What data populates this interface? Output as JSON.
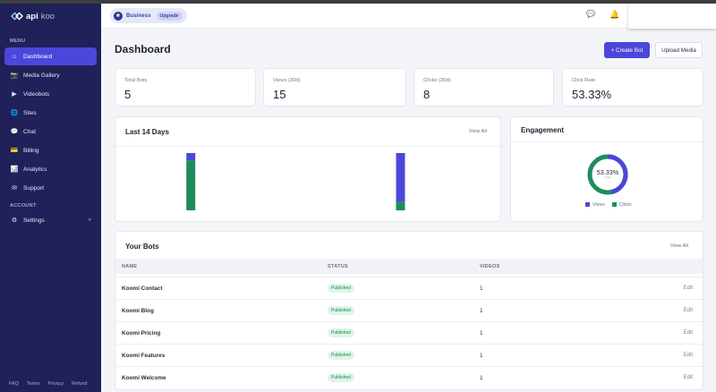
{
  "brand": {
    "name_a": "api",
    "name_b": "koo"
  },
  "sidebar": {
    "menu_label": "MENU",
    "account_label": "ACCOUNT",
    "items": [
      {
        "label": "Dashboard",
        "icon": "home-icon",
        "glyph": "⌂"
      },
      {
        "label": "Media Gallery",
        "icon": "camera-icon",
        "glyph": "📷"
      },
      {
        "label": "Videobots",
        "icon": "play-icon",
        "glyph": "▶"
      },
      {
        "label": "Sites",
        "icon": "globe-icon",
        "glyph": "🌐"
      },
      {
        "label": "Chat",
        "icon": "chat-icon",
        "glyph": "💬"
      },
      {
        "label": "Billing",
        "icon": "card-icon",
        "glyph": "💳"
      },
      {
        "label": "Analytics",
        "icon": "chart-icon",
        "glyph": "📊"
      },
      {
        "label": "Support",
        "icon": "mail-icon",
        "glyph": "✉"
      }
    ],
    "settings": {
      "label": "Settings",
      "icon": "gear-icon",
      "glyph": "⚙",
      "chevron": "»"
    },
    "footer": [
      "FAQ",
      "Terms",
      "Privacy",
      "Refund"
    ]
  },
  "header": {
    "workspace": "Business",
    "upgrade": "Upgrade",
    "chat_glyph": "💬",
    "bell_glyph": "🔔"
  },
  "page": {
    "title": "Dashboard",
    "create_button": "+ Create Bot",
    "upload_button": "Upload Media"
  },
  "stats": [
    {
      "label": "Total Bots",
      "value": "5"
    },
    {
      "label": "Views (30d)",
      "value": "15"
    },
    {
      "label": "Clicks (30d)",
      "value": "8"
    },
    {
      "label": "Click Rate",
      "value": "53.33%"
    }
  ],
  "activity": {
    "title": "Last 14 Days",
    "view_all": "View All"
  },
  "chart_data": {
    "type": "bar",
    "stacked": true,
    "series": [
      {
        "values": [
          null,
          null,
          null,
          null,
          null,
          null,
          null,
          null,
          null,
          null,
          null,
          null,
          null,
          null
        ],
        "color": "#4c47db"
      },
      {
        "values": [
          null,
          null,
          null,
          null,
          null,
          null,
          null,
          null,
          null,
          null,
          null,
          null,
          null,
          null
        ],
        "color": "#1d8c5b"
      }
    ],
    "bars": [
      {
        "index": 2,
        "clicks_fraction": 0.87,
        "views_fraction": 0.13
      },
      {
        "index": 10,
        "clicks_fraction": 0.15,
        "views_fraction": 0.85
      }
    ],
    "colors": {
      "views": "#4c47db",
      "clicks": "#1d8c5b"
    }
  },
  "engagement": {
    "title": "Engagement",
    "center_value": "53.33%",
    "center_sub": "CTR",
    "ratio": 0.5333,
    "legend": [
      "Views",
      "Clicks"
    ]
  },
  "bots": {
    "title": "Your Bots",
    "view_all": "View All",
    "columns": [
      "NAME",
      "STATUS",
      "VIDEOS"
    ],
    "rows": [
      {
        "name": "Koomi Contact",
        "status": "Published",
        "videos": "1",
        "action": "Edit"
      },
      {
        "name": "Koomi Blog",
        "status": "Published",
        "videos": "1",
        "action": "Edit"
      },
      {
        "name": "Koomi Pricing",
        "status": "Published",
        "videos": "1",
        "action": "Edit"
      },
      {
        "name": "Koomi Features",
        "status": "Published",
        "videos": "1",
        "action": "Edit"
      },
      {
        "name": "Koomi Welcome",
        "status": "Published",
        "videos": "1",
        "action": "Edit"
      }
    ]
  }
}
